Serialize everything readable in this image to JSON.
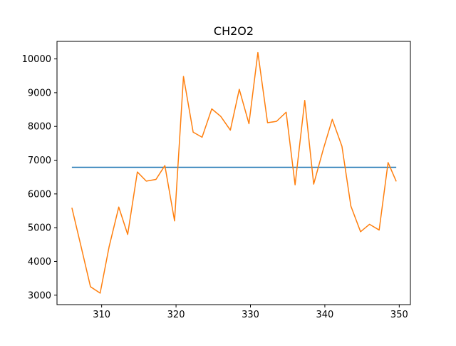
{
  "chart_data": {
    "type": "line",
    "title": "CH2O2",
    "xlabel": "",
    "ylabel": "",
    "xlim": [
      304,
      351.5
    ],
    "ylim": [
      2720,
      10520
    ],
    "xticks": [
      310,
      320,
      330,
      340,
      350
    ],
    "yticks": [
      3000,
      4000,
      5000,
      6000,
      7000,
      8000,
      9000,
      10000
    ],
    "grid": false,
    "legend": "none",
    "series": [
      {
        "color": "#1f77b4",
        "x": [
          306,
          349.6
        ],
        "y": [
          6790,
          6790
        ]
      },
      {
        "color": "#ff7f0e",
        "x": [
          306.0,
          307.3,
          308.5,
          309.8,
          311.0,
          312.3,
          313.5,
          314.8,
          316.0,
          317.3,
          318.5,
          319.8,
          321.0,
          322.3,
          323.5,
          324.8,
          326.0,
          327.3,
          328.5,
          329.8,
          331.0,
          332.3,
          333.5,
          334.8,
          336.0,
          337.3,
          338.5,
          339.8,
          341.0,
          342.3,
          343.5,
          344.8,
          346.0,
          347.3,
          348.5,
          349.6
        ],
        "y": [
          5590,
          4380,
          3250,
          3060,
          4430,
          5610,
          4800,
          6650,
          6380,
          6430,
          6840,
          5200,
          9480,
          7830,
          7680,
          8520,
          8300,
          7890,
          9100,
          8080,
          10190,
          8110,
          8150,
          8420,
          6270,
          8770,
          6290,
          7330,
          8210,
          7410,
          5640,
          4880,
          5100,
          4930,
          6930,
          6370
        ]
      }
    ]
  }
}
